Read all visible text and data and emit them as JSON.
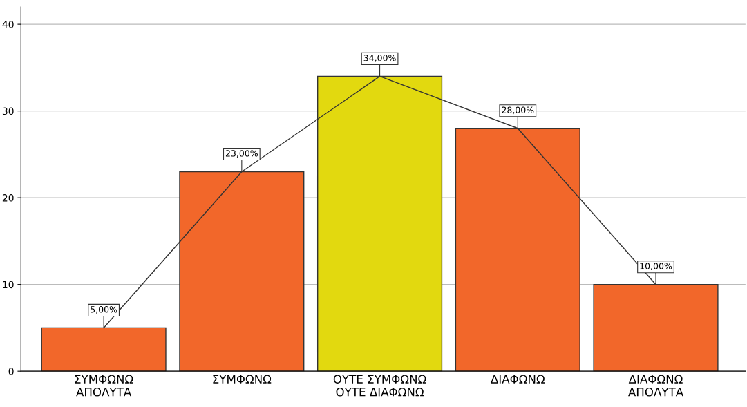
{
  "chart_data": {
    "type": "bar",
    "categories": [
      "ΣΥΜΦΩΝΩ\nΑΠΟΛΥΤΑ",
      "ΣΥΜΦΩΝΩ",
      "ΟΥΤΕ ΣΥΜΦΩΝΩ\nΟΥΤΕ ΔΙΑΦΩΝΩ",
      "ΔΙΑΦΩΝΩ",
      "ΔΙΑΦΩΝΩ\nΑΠΟΛΥΤΑ"
    ],
    "series": [
      {
        "colors": [
          "#f2672a",
          "#f2672a",
          "#e2d90f",
          "#f2672a",
          "#f2672a"
        ],
        "values": [
          5,
          23,
          34,
          28,
          10
        ],
        "value_labels": [
          "5,00%",
          "23,00%",
          "34,00%",
          "28,00%",
          "10,00%"
        ]
      },
      {
        "type": "line",
        "color": "#333333",
        "values": [
          5,
          23,
          34,
          28,
          10
        ]
      }
    ],
    "ylim": [
      0,
      42
    ],
    "yticks": [
      0,
      10,
      20,
      30,
      40
    ],
    "grid": "y",
    "marker": "none",
    "line_style": "solid"
  }
}
